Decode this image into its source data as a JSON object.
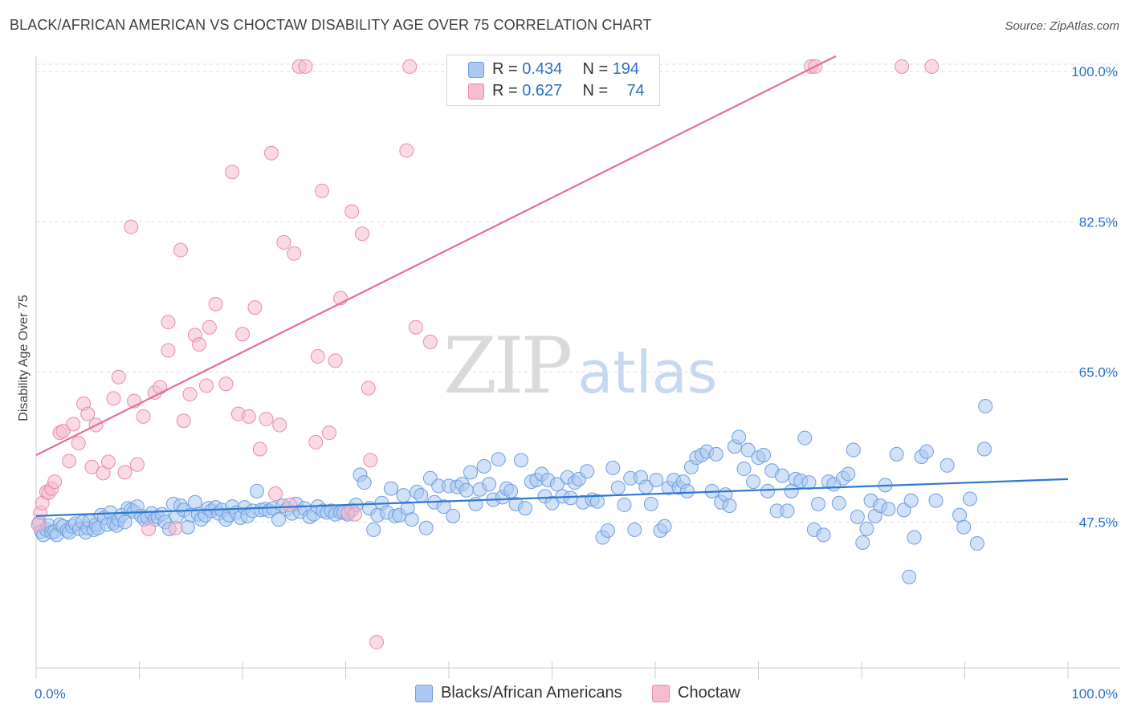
{
  "title": "BLACK/AFRICAN AMERICAN VS CHOCTAW DISABILITY AGE OVER 75 CORRELATION CHART",
  "source": "Source: ZipAtlas.com",
  "watermark": {
    "zip": "ZIP",
    "atlas": "atlas"
  },
  "legend": {
    "r_label": "R =",
    "n_label": "N =",
    "items": [
      {
        "r": "0.434",
        "n": "194"
      },
      {
        "r": "0.627",
        "n": "74"
      }
    ]
  },
  "bottom_legend": [
    "Blacks/African Americans",
    "Choctaw"
  ],
  "chart_data": {
    "type": "scatter",
    "title": "BLACK/AFRICAN AMERICAN VS CHOCTAW DISABILITY AGE OVER 75 CORRELATION CHART",
    "xlabel": "",
    "ylabel": "Disability Age Over 75",
    "xlim": [
      0,
      100
    ],
    "ylim": [
      30.5,
      101.8
    ],
    "x_tick_labels": [
      "0.0%",
      "100.0%"
    ],
    "y_ticks": [
      47.5,
      65.0,
      82.5,
      100.0
    ],
    "y_tick_labels": [
      "47.5%",
      "65.0%",
      "82.5%",
      "100.0%"
    ],
    "grid": true,
    "legend_position": "top-center",
    "colors": {
      "blue_fill": "#a9c8f2",
      "blue_stroke": "#6f9fdc",
      "blue_line": "#2f78d1",
      "pink_fill": "#f6bcd0",
      "pink_stroke": "#e98bab",
      "pink_line": "#e56f97",
      "grid": "#dedede",
      "axis_text": "#2a6fc9"
    },
    "series": [
      {
        "name": "Blacks/African Americans",
        "trend": [
          [
            0,
            48.2
          ],
          [
            100,
            52.5
          ]
        ],
        "points": [
          [
            0.3,
            47.4
          ],
          [
            0.5,
            46.4
          ],
          [
            0.7,
            46.0
          ],
          [
            1.0,
            46.6
          ],
          [
            1.2,
            47.1
          ],
          [
            1.5,
            46.3
          ],
          [
            1.8,
            46.4
          ],
          [
            2.0,
            46.0
          ],
          [
            2.3,
            47.2
          ],
          [
            2.6,
            47.0
          ],
          [
            3.0,
            46.5
          ],
          [
            3.2,
            46.3
          ],
          [
            3.5,
            47.0
          ],
          [
            3.8,
            47.3
          ],
          [
            4.2,
            46.7
          ],
          [
            4.5,
            47.5
          ],
          [
            4.8,
            46.3
          ],
          [
            5.0,
            46.8
          ],
          [
            5.2,
            47.6
          ],
          [
            5.6,
            46.6
          ],
          [
            5.8,
            47.2
          ],
          [
            6.0,
            46.8
          ],
          [
            6.3,
            48.3
          ],
          [
            6.6,
            48.0
          ],
          [
            6.9,
            47.2
          ],
          [
            7.2,
            48.6
          ],
          [
            7.5,
            47.4
          ],
          [
            7.8,
            47.1
          ],
          [
            8.0,
            47.8
          ],
          [
            8.3,
            48.3
          ],
          [
            8.6,
            47.5
          ],
          [
            8.9,
            49.1
          ],
          [
            9.2,
            48.9
          ],
          [
            9.5,
            48.7
          ],
          [
            9.8,
            49.3
          ],
          [
            10.2,
            48.2
          ],
          [
            10.5,
            47.8
          ],
          [
            10.8,
            48.0
          ],
          [
            11.2,
            48.5
          ],
          [
            11.5,
            47.8
          ],
          [
            11.8,
            48.1
          ],
          [
            12.2,
            48.4
          ],
          [
            12.5,
            47.5
          ],
          [
            12.9,
            46.7
          ],
          [
            13.3,
            49.6
          ],
          [
            13.6,
            48.1
          ],
          [
            14.0,
            49.4
          ],
          [
            14.3,
            48.9
          ],
          [
            14.7,
            46.9
          ],
          [
            15.0,
            48.3
          ],
          [
            15.4,
            49.8
          ],
          [
            15.7,
            48.4
          ],
          [
            16.0,
            47.8
          ],
          [
            16.4,
            48.3
          ],
          [
            16.7,
            49.1
          ],
          [
            17.0,
            48.8
          ],
          [
            17.4,
            49.2
          ],
          [
            17.7,
            48.5
          ],
          [
            18.0,
            48.9
          ],
          [
            18.4,
            47.8
          ],
          [
            18.7,
            48.3
          ],
          [
            19.0,
            49.3
          ],
          [
            19.4,
            48.6
          ],
          [
            19.8,
            48.0
          ],
          [
            20.2,
            49.2
          ],
          [
            20.5,
            48.2
          ],
          [
            21.0,
            48.8
          ],
          [
            21.4,
            51.1
          ],
          [
            21.8,
            48.9
          ],
          [
            22.2,
            49.0
          ],
          [
            22.6,
            48.8
          ],
          [
            23.0,
            49.1
          ],
          [
            23.5,
            47.8
          ],
          [
            23.9,
            49.4
          ],
          [
            24.3,
            49.0
          ],
          [
            24.8,
            48.5
          ],
          [
            25.2,
            49.6
          ],
          [
            25.6,
            48.7
          ],
          [
            26.0,
            49.1
          ],
          [
            26.5,
            48.1
          ],
          [
            26.9,
            48.4
          ],
          [
            27.3,
            49.3
          ],
          [
            27.8,
            48.8
          ],
          [
            28.2,
            48.6
          ],
          [
            28.6,
            48.8
          ],
          [
            29.0,
            48.4
          ],
          [
            29.5,
            48.6
          ],
          [
            29.8,
            48.6
          ],
          [
            30.2,
            48.4
          ],
          [
            30.6,
            48.9
          ],
          [
            31.0,
            49.5
          ],
          [
            31.4,
            53.0
          ],
          [
            31.8,
            52.1
          ],
          [
            32.3,
            49.1
          ],
          [
            32.7,
            46.6
          ],
          [
            33.1,
            48.3
          ],
          [
            33.5,
            49.7
          ],
          [
            34.0,
            48.6
          ],
          [
            34.4,
            51.4
          ],
          [
            34.8,
            48.2
          ],
          [
            35.2,
            48.3
          ],
          [
            35.6,
            50.6
          ],
          [
            36.0,
            49.1
          ],
          [
            36.4,
            47.8
          ],
          [
            36.9,
            51.0
          ],
          [
            37.3,
            50.6
          ],
          [
            37.8,
            46.8
          ],
          [
            38.2,
            52.6
          ],
          [
            38.6,
            49.8
          ],
          [
            39.0,
            51.7
          ],
          [
            39.5,
            49.3
          ],
          [
            40.0,
            51.7
          ],
          [
            40.4,
            48.2
          ],
          [
            40.8,
            51.6
          ],
          [
            41.3,
            51.9
          ],
          [
            41.7,
            51.2
          ],
          [
            42.1,
            53.3
          ],
          [
            42.6,
            49.6
          ],
          [
            43.0,
            51.3
          ],
          [
            43.4,
            54.0
          ],
          [
            43.9,
            51.9
          ],
          [
            44.3,
            50.1
          ],
          [
            44.8,
            54.8
          ],
          [
            45.2,
            50.4
          ],
          [
            45.6,
            51.4
          ],
          [
            46.0,
            51.1
          ],
          [
            46.5,
            49.6
          ],
          [
            47.0,
            54.7
          ],
          [
            47.4,
            49.1
          ],
          [
            48.0,
            52.2
          ],
          [
            48.5,
            52.4
          ],
          [
            49.0,
            53.1
          ],
          [
            49.3,
            50.5
          ],
          [
            49.6,
            52.4
          ],
          [
            50.0,
            49.7
          ],
          [
            50.5,
            51.9
          ],
          [
            51.0,
            50.5
          ],
          [
            51.5,
            52.7
          ],
          [
            51.8,
            50.3
          ],
          [
            52.2,
            52.1
          ],
          [
            52.6,
            52.5
          ],
          [
            53.0,
            49.8
          ],
          [
            53.4,
            53.4
          ],
          [
            53.9,
            50.1
          ],
          [
            54.4,
            49.9
          ],
          [
            54.9,
            45.7
          ],
          [
            55.4,
            46.5
          ],
          [
            55.9,
            53.8
          ],
          [
            56.4,
            51.5
          ],
          [
            57.0,
            49.5
          ],
          [
            57.6,
            52.6
          ],
          [
            58.0,
            46.6
          ],
          [
            58.6,
            52.7
          ],
          [
            59.1,
            51.6
          ],
          [
            59.6,
            49.6
          ],
          [
            60.1,
            52.4
          ],
          [
            60.5,
            46.5
          ],
          [
            60.9,
            47.0
          ],
          [
            61.3,
            51.5
          ],
          [
            61.8,
            52.4
          ],
          [
            62.3,
            51.5
          ],
          [
            62.7,
            52.2
          ],
          [
            63.1,
            51.1
          ],
          [
            63.5,
            53.9
          ],
          [
            64.0,
            55.0
          ],
          [
            64.5,
            55.3
          ],
          [
            65.0,
            55.7
          ],
          [
            65.5,
            51.1
          ],
          [
            65.9,
            55.4
          ],
          [
            66.4,
            49.8
          ],
          [
            66.8,
            50.7
          ],
          [
            67.2,
            49.4
          ],
          [
            67.7,
            56.3
          ],
          [
            68.1,
            57.4
          ],
          [
            68.6,
            53.7
          ],
          [
            69.0,
            55.9
          ],
          [
            69.5,
            52.2
          ],
          [
            70.0,
            55.0
          ],
          [
            70.5,
            55.3
          ],
          [
            70.9,
            51.1
          ],
          [
            71.3,
            53.5
          ],
          [
            71.8,
            48.8
          ],
          [
            72.3,
            52.9
          ],
          [
            72.8,
            48.8
          ],
          [
            73.2,
            51.1
          ],
          [
            73.6,
            52.5
          ],
          [
            74.1,
            52.3
          ],
          [
            74.5,
            57.3
          ],
          [
            74.9,
            52.1
          ],
          [
            75.4,
            46.6
          ],
          [
            75.8,
            49.6
          ],
          [
            76.3,
            46.0
          ],
          [
            76.8,
            52.2
          ],
          [
            77.3,
            51.9
          ],
          [
            77.8,
            49.7
          ],
          [
            78.2,
            52.6
          ],
          [
            78.7,
            53.1
          ],
          [
            79.2,
            55.9
          ],
          [
            79.6,
            48.1
          ],
          [
            80.1,
            45.1
          ],
          [
            80.5,
            46.7
          ],
          [
            80.9,
            50.0
          ],
          [
            81.3,
            48.2
          ],
          [
            81.8,
            49.4
          ],
          [
            82.3,
            51.8
          ],
          [
            82.6,
            49.0
          ],
          [
            83.4,
            55.4
          ],
          [
            84.1,
            48.9
          ],
          [
            84.8,
            50.0
          ],
          [
            85.1,
            45.7
          ],
          [
            85.8,
            55.1
          ],
          [
            86.3,
            55.7
          ],
          [
            87.2,
            50.0
          ],
          [
            88.3,
            54.1
          ],
          [
            89.5,
            48.3
          ],
          [
            89.9,
            46.9
          ],
          [
            90.5,
            50.2
          ],
          [
            91.2,
            45.0
          ],
          [
            91.9,
            56.0
          ],
          [
            92.0,
            61.0
          ],
          [
            84.6,
            41.1
          ]
        ]
      },
      {
        "name": "Choctaw",
        "trend": [
          [
            0,
            55.3
          ],
          [
            77.5,
            101.8
          ]
        ],
        "points": [
          [
            0.2,
            47.2
          ],
          [
            0.4,
            48.6
          ],
          [
            0.6,
            49.7
          ],
          [
            1.0,
            51.0
          ],
          [
            1.2,
            50.9
          ],
          [
            1.5,
            51.4
          ],
          [
            1.8,
            52.2
          ],
          [
            2.3,
            57.9
          ],
          [
            2.6,
            58.1
          ],
          [
            3.2,
            54.6
          ],
          [
            3.6,
            58.9
          ],
          [
            4.1,
            56.7
          ],
          [
            4.6,
            61.3
          ],
          [
            5.0,
            60.1
          ],
          [
            5.4,
            53.9
          ],
          [
            5.8,
            58.8
          ],
          [
            6.5,
            53.2
          ],
          [
            7.0,
            54.5
          ],
          [
            7.5,
            61.9
          ],
          [
            8.0,
            64.4
          ],
          [
            8.6,
            53.3
          ],
          [
            9.2,
            81.9
          ],
          [
            9.5,
            61.6
          ],
          [
            9.8,
            54.2
          ],
          [
            10.4,
            59.8
          ],
          [
            10.9,
            46.7
          ],
          [
            11.5,
            62.6
          ],
          [
            12.0,
            63.2
          ],
          [
            12.8,
            70.8
          ],
          [
            12.8,
            67.5
          ],
          [
            13.5,
            46.8
          ],
          [
            14.0,
            79.2
          ],
          [
            14.3,
            59.3
          ],
          [
            14.9,
            62.4
          ],
          [
            15.4,
            69.3
          ],
          [
            15.8,
            68.2
          ],
          [
            16.5,
            63.4
          ],
          [
            16.8,
            70.2
          ],
          [
            17.4,
            72.9
          ],
          [
            18.4,
            63.6
          ],
          [
            19.0,
            88.3
          ],
          [
            19.6,
            60.1
          ],
          [
            20.0,
            69.4
          ],
          [
            20.6,
            59.8
          ],
          [
            21.2,
            72.5
          ],
          [
            21.7,
            56.0
          ],
          [
            22.3,
            59.5
          ],
          [
            22.8,
            90.5
          ],
          [
            23.2,
            50.8
          ],
          [
            23.6,
            58.8
          ],
          [
            24.0,
            80.1
          ],
          [
            24.6,
            49.5
          ],
          [
            25.0,
            78.8
          ],
          [
            25.5,
            100.6
          ],
          [
            26.1,
            100.6
          ],
          [
            27.1,
            56.8
          ],
          [
            27.3,
            66.8
          ],
          [
            27.7,
            86.1
          ],
          [
            28.4,
            57.9
          ],
          [
            29.0,
            66.3
          ],
          [
            29.5,
            73.6
          ],
          [
            30.2,
            48.6
          ],
          [
            30.6,
            83.7
          ],
          [
            30.9,
            48.4
          ],
          [
            31.6,
            81.1
          ],
          [
            32.2,
            63.1
          ],
          [
            32.4,
            54.7
          ],
          [
            33.0,
            33.5
          ],
          [
            35.9,
            90.8
          ],
          [
            36.2,
            100.6
          ],
          [
            36.8,
            70.2
          ],
          [
            38.2,
            68.5
          ],
          [
            75.1,
            100.6
          ],
          [
            75.5,
            100.6
          ],
          [
            83.9,
            100.6
          ],
          [
            86.8,
            100.6
          ]
        ]
      }
    ]
  }
}
